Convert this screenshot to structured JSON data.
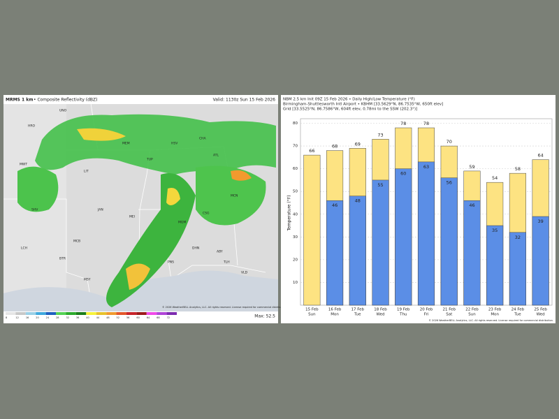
{
  "left_panel": {
    "title": "MRMS 1 km",
    "subtitle": "• Composite Reflectivity (dBZ)",
    "valid": "Valid: 1130z Sun 15 Feb 2026",
    "max": "Max: 52.5",
    "copyright": "© 2026 WeatherBELL Analytics, LLC. All rights reserved. License required for commercial distribution.",
    "scale_labels": [
      "8",
      "12",
      "16",
      "20",
      "24",
      "28",
      "32",
      "36",
      "40",
      "44",
      "48",
      "52",
      "56",
      "60",
      "64",
      "68",
      "72"
    ],
    "stations": [
      "UNO",
      "HRO",
      "MWT",
      "LIT",
      "MEM",
      "TUP",
      "HSV",
      "CHA",
      "ATL",
      "MCN",
      "JAN",
      "MEI",
      "MGM",
      "CSG",
      "ABY",
      "MCB",
      "PNS",
      "TLH",
      "LCH",
      "BTR",
      "MSY",
      "SHV",
      "DHN",
      "VLD"
    ]
  },
  "chart_data": {
    "type": "bar",
    "title": "NBM 2.5 km Init 09Z 15 Feb 2026 • Daily High/Low Temperature (°F)",
    "subtitle": "Birmingham-Shuttlesworth Intl Airport • KBHM [33.5629°N, 86.7535°W, 650ft elev]",
    "grid_info": "Grid [33.5525°N, 86.7586°W, 604ft elev, 0.78mi to the SSW (202.3°)]",
    "y_label": "Temperature (°F)",
    "copyright": "© 2026 WeatherBELL Analytics, LLC. All rights reserved. License required for commercial distribution.",
    "categories": [
      "15 Feb",
      "16 Feb",
      "17 Feb",
      "18 Feb",
      "19 Feb",
      "20 Feb",
      "21 Feb",
      "22 Feb",
      "23 Feb",
      "24 Feb",
      "25 Feb"
    ],
    "weekdays": [
      "Sun",
      "Mon",
      "Tue",
      "Wed",
      "Thu",
      "Fri",
      "Sat",
      "Sun",
      "Mon",
      "Tue",
      "Wed"
    ],
    "series": [
      {
        "color": "#fde382",
        "values": [
          66,
          68,
          69,
          73,
          78,
          78,
          70,
          59,
          54,
          58,
          64
        ]
      },
      {
        "color": "#5b8ee6",
        "values": [
          null,
          46,
          48,
          55,
          60,
          63,
          56,
          46,
          35,
          32,
          39
        ]
      }
    ],
    "ylim": [
      0,
      82
    ],
    "yticks": [
      10,
      20,
      30,
      40,
      50,
      60,
      70,
      80
    ],
    "grid": true
  }
}
